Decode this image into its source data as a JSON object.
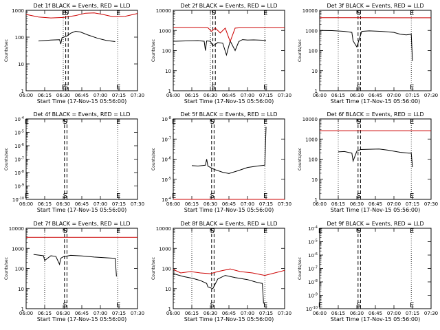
{
  "figure": {
    "line_colors": {
      "events": "#000000",
      "lld": "#cc0000"
    }
  },
  "chart_data": [
    {
      "type": "line",
      "panel": "1f",
      "title": "Det 1f BLACK = Events, RED = LLD",
      "xlabel": "Start Time (17-Nov-15 05:56:00)",
      "ylabel": "Counts/sec",
      "yscale": "log",
      "ylim": [
        1,
        1000
      ],
      "xlim": [
        "06:00",
        "07:30"
      ],
      "xticks": [
        "06:00",
        "06:15",
        "06:30",
        "06:45",
        "07:00",
        "07:15",
        "07:30"
      ],
      "yticks": [
        "1",
        "10",
        "100",
        "1000"
      ],
      "markers": [
        {
          "label": "E",
          "time": "06:30",
          "style": "dotted"
        },
        {
          "label": "S",
          "time": "06:32",
          "style": "dashed"
        },
        {
          "label": "",
          "time": "06:34",
          "style": "dashed"
        },
        {
          "label": "E",
          "time": "07:14",
          "style": "dotted"
        }
      ],
      "series": [
        {
          "key": "events",
          "x": [
            "06:10",
            "06:20",
            "06:27",
            "06:28",
            "06:29",
            "06:33",
            "06:36",
            "06:40",
            "06:44",
            "06:50",
            "06:58",
            "07:05",
            "07:12"
          ],
          "values": [
            72,
            78,
            80,
            55,
            95,
            110,
            140,
            165,
            155,
            120,
            90,
            75,
            68
          ]
        },
        {
          "key": "lld",
          "x": [
            "06:00",
            "06:10",
            "06:20",
            "06:30",
            "06:40",
            "06:48",
            "06:55",
            "07:02",
            "07:10",
            "07:20",
            "07:30"
          ],
          "values": [
            700,
            560,
            520,
            540,
            640,
            780,
            800,
            700,
            580,
            600,
            760
          ]
        }
      ]
    },
    {
      "type": "line",
      "panel": "2f",
      "title": "Det 2f BLACK = Events, RED = LLD",
      "xlabel": "Start Time (17-Nov-15 05:56:00)",
      "ylabel": "Counts/sec",
      "yscale": "log",
      "ylim": [
        1,
        10000
      ],
      "xlim": [
        "06:00",
        "07:30"
      ],
      "xticks": [
        "06:00",
        "06:15",
        "06:30",
        "06:45",
        "07:00",
        "07:15",
        "07:30"
      ],
      "yticks": [
        "1",
        "10",
        "100",
        "1000",
        "10000"
      ],
      "markers": [
        {
          "label": "",
          "time": "06:30",
          "style": "dotted"
        },
        {
          "label": "S",
          "time": "06:32",
          "style": "dashed"
        },
        {
          "label": "",
          "time": "06:34",
          "style": "dashed"
        },
        {
          "label": "E",
          "time": "07:14",
          "style": "dotted"
        }
      ],
      "series": [
        {
          "key": "events",
          "x": [
            "06:00",
            "06:10",
            "06:20",
            "06:25",
            "06:26",
            "06:27",
            "06:30",
            "06:32",
            "06:36",
            "06:40",
            "06:43",
            "06:46",
            "06:50",
            "06:53",
            "06:56",
            "07:00",
            "07:05",
            "07:15"
          ],
          "values": [
            290,
            300,
            310,
            290,
            100,
            300,
            290,
            170,
            250,
            230,
            60,
            300,
            100,
            280,
            350,
            330,
            340,
            320
          ]
        },
        {
          "key": "lld",
          "x": [
            "06:00",
            "06:20",
            "06:28",
            "06:31",
            "06:34",
            "06:38",
            "06:42",
            "06:46",
            "06:50",
            "06:54",
            "07:00",
            "07:30"
          ],
          "values": [
            1400,
            1400,
            1350,
            900,
            1300,
            750,
            1300,
            280,
            1300,
            1350,
            1350,
            1350
          ]
        }
      ]
    },
    {
      "type": "line",
      "panel": "3f",
      "title": "Det 3f BLACK = Events, RED = LLD",
      "xlabel": "Start Time (17-Nov-15 05:56:00)",
      "ylabel": "Counts/sec",
      "yscale": "log",
      "ylim": [
        1,
        10000
      ],
      "xlim": [
        "06:00",
        "07:30"
      ],
      "xticks": [
        "06:00",
        "06:15",
        "06:30",
        "06:45",
        "07:00",
        "07:15",
        "07:30"
      ],
      "yticks": [
        "1",
        "10",
        "100",
        "1000",
        "10000"
      ],
      "markers": [
        {
          "label": "",
          "time": "06:15",
          "style": "dotted"
        },
        {
          "label": "S",
          "time": "06:31",
          "style": "dashed"
        },
        {
          "label": "",
          "time": "06:33",
          "style": "dashed"
        },
        {
          "label": "E",
          "time": "07:14",
          "style": "dotted"
        }
      ],
      "series": [
        {
          "key": "events",
          "x": [
            "06:00",
            "06:10",
            "06:20",
            "06:26",
            "06:27",
            "06:30",
            "06:34",
            "06:40",
            "06:50",
            "07:00",
            "07:05",
            "07:10",
            "07:14",
            "07:15"
          ],
          "values": [
            1000,
            980,
            900,
            800,
            300,
            150,
            900,
            950,
            900,
            800,
            650,
            600,
            650,
            30
          ]
        },
        {
          "key": "lld",
          "x": [
            "06:00",
            "06:30",
            "07:00",
            "07:30"
          ],
          "values": [
            4300,
            4300,
            4250,
            4250
          ]
        }
      ]
    },
    {
      "type": "line",
      "panel": "4f",
      "title": "Det 4f BLACK = Events, RED = LLD",
      "xlabel": "Start Time (17-Nov-15 05:56:00)",
      "ylabel": "Counts/sec",
      "yscale": "log",
      "ylim": [
        1e-10,
        0.0001
      ],
      "xlim": [
        "06:00",
        "07:30"
      ],
      "xticks": [
        "06:00",
        "06:15",
        "06:30",
        "06:45",
        "07:00",
        "07:15",
        "07:30"
      ],
      "yticks": [
        "10^-10",
        "10^-9",
        "10^-8",
        "10^-7",
        "10^-6",
        "10^-5",
        "10^-4"
      ],
      "markers": [
        {
          "label": "E",
          "time": "06:00",
          "style": "dotted"
        },
        {
          "label": "S",
          "time": "06:31",
          "style": "dashed"
        },
        {
          "label": "",
          "time": "06:33",
          "style": "dashed"
        },
        {
          "label": "E",
          "time": "07:14",
          "style": "dotted"
        }
      ],
      "series": []
    },
    {
      "type": "line",
      "panel": "5f",
      "title": "Det 5f BLACK = Events, RED = LLD",
      "xlabel": "Start Time (17-Nov-15 05:56:00)",
      "ylabel": "Counts/sec",
      "yscale": "log",
      "ylim": [
        0.0001,
        1e-08
      ],
      "xlim": [
        "06:00",
        "07:30"
      ],
      "xticks": [
        "06:00",
        "06:15",
        "06:30",
        "06:45",
        "07:00",
        "07:15",
        "07:30"
      ],
      "yticks": [
        "10^-4",
        "10^-5",
        "10^-6",
        "10^-7",
        "10^-8"
      ],
      "markers": [
        {
          "label": "E",
          "time": "06:00",
          "style": "dotted"
        },
        {
          "label": "S",
          "time": "06:31",
          "style": "dashed"
        },
        {
          "label": "",
          "time": "06:33",
          "style": "dashed"
        },
        {
          "label": "E",
          "time": "07:14",
          "style": "dotted"
        }
      ],
      "series": [
        {
          "key": "events",
          "x": [
            "06:15",
            "06:20",
            "06:26",
            "06:27",
            "06:28",
            "06:30",
            "06:33",
            "06:40",
            "06:45",
            "06:52",
            "07:00",
            "07:08",
            "07:14",
            "07:15"
          ],
          "values": [
            2.1e-06,
            2.2e-06,
            2e-06,
            1e-06,
            2.2e-06,
            2.6e-06,
            3.2e-06,
            4.5e-06,
            5.2e-06,
            3.8e-06,
            2.6e-06,
            2.2e-06,
            2e-06,
            2.5e-08
          ]
        },
        {
          "key": "lld",
          "x": [
            "06:00",
            "07:30"
          ],
          "values": [
            0.0001,
            0.0001
          ]
        }
      ]
    },
    {
      "type": "line",
      "panel": "6f",
      "title": "Det 6f BLACK = Events, RED = LLD",
      "xlabel": "Start Time (17-Nov-15 05:56:00)",
      "ylabel": "Counts/sec",
      "yscale": "log",
      "ylim": [
        1,
        10000
      ],
      "xlim": [
        "06:00",
        "07:30"
      ],
      "xticks": [
        "06:00",
        "06:15",
        "06:30",
        "06:45",
        "07:00",
        "07:15",
        "07:30"
      ],
      "yticks": [
        "1",
        "10",
        "100",
        "1000",
        "10000"
      ],
      "markers": [
        {
          "label": "",
          "time": "06:15",
          "style": "dotted"
        },
        {
          "label": "S",
          "time": "06:31",
          "style": "dashed"
        },
        {
          "label": "",
          "time": "06:33",
          "style": "dashed"
        },
        {
          "label": "E",
          "time": "07:14",
          "style": "dotted"
        }
      ],
      "series": [
        {
          "key": "events",
          "x": [
            "06:15",
            "06:20",
            "06:26",
            "06:27",
            "06:30",
            "06:33",
            "06:40",
            "06:48",
            "06:55",
            "07:05",
            "07:12",
            "07:14",
            "07:15"
          ],
          "values": [
            230,
            240,
            200,
            80,
            250,
            300,
            310,
            320,
            280,
            220,
            200,
            200,
            40
          ]
        },
        {
          "key": "lld",
          "x": [
            "06:00",
            "07:30"
          ],
          "values": [
            2600,
            2600
          ]
        }
      ]
    },
    {
      "type": "line",
      "panel": "7f",
      "title": "Det 7f BLACK = Events, RED = LLD",
      "xlabel": "Start Time (17-Nov-15 05:56:00)",
      "ylabel": "Counts/sec",
      "yscale": "log",
      "ylim": [
        1,
        10000
      ],
      "xlim": [
        "06:00",
        "07:30"
      ],
      "xticks": [
        "06:00",
        "06:15",
        "06:30",
        "06:45",
        "07:00",
        "07:15",
        "07:30"
      ],
      "yticks": [
        "1",
        "10",
        "100",
        "1000",
        "10000"
      ],
      "markers": [
        {
          "label": "",
          "time": "06:15",
          "style": "dotted"
        },
        {
          "label": "S",
          "time": "06:31",
          "style": "dashed"
        },
        {
          "label": "",
          "time": "06:33",
          "style": "dashed"
        },
        {
          "label": "E",
          "time": "07:14",
          "style": "dotted"
        }
      ],
      "series": [
        {
          "key": "events",
          "x": [
            "06:06",
            "06:14",
            "06:15",
            "06:20",
            "06:24",
            "06:27",
            "06:28",
            "06:30",
            "06:36",
            "06:45",
            "06:55",
            "07:05",
            "07:12",
            "07:13"
          ],
          "values": [
            500,
            430,
            250,
            430,
            400,
            160,
            320,
            380,
            450,
            420,
            370,
            340,
            320,
            40
          ]
        },
        {
          "key": "lld",
          "x": [
            "06:00",
            "07:30"
          ],
          "values": [
            3500,
            3500
          ]
        }
      ]
    },
    {
      "type": "line",
      "panel": "8f",
      "title": "Det 8f BLACK = Events, RED = LLD",
      "xlabel": "Start Time (17-Nov-15 05:56:00)",
      "ylabel": "Counts/sec",
      "yscale": "log",
      "ylim": [
        1,
        10000
      ],
      "xlim": [
        "06:00",
        "07:30"
      ],
      "xticks": [
        "06:00",
        "06:15",
        "06:30",
        "06:45",
        "07:00",
        "07:15",
        "07:30"
      ],
      "yticks": [
        "1",
        "10",
        "100",
        "1000",
        "10000"
      ],
      "markers": [
        {
          "label": "",
          "time": "06:15",
          "style": "dotted"
        },
        {
          "label": "S",
          "time": "06:31",
          "style": "dashed"
        },
        {
          "label": "",
          "time": "06:33",
          "style": "dashed"
        },
        {
          "label": "E",
          "time": "07:14",
          "style": "dotted"
        }
      ],
      "series": [
        {
          "key": "events",
          "x": [
            "06:00",
            "06:08",
            "06:16",
            "06:22",
            "06:27",
            "06:28",
            "06:32",
            "06:36",
            "06:42",
            "06:50",
            "07:00",
            "07:08",
            "07:12",
            "07:13"
          ],
          "values": [
            55,
            40,
            32,
            25,
            18,
            12,
            10,
            30,
            45,
            35,
            28,
            20,
            18,
            1.8
          ]
        },
        {
          "key": "lld",
          "x": [
            "06:00",
            "06:06",
            "06:14",
            "06:22",
            "06:30",
            "06:36",
            "06:46",
            "06:54",
            "07:04",
            "07:14",
            "07:22",
            "07:30"
          ],
          "values": [
            90,
            60,
            70,
            60,
            55,
            70,
            95,
            70,
            60,
            45,
            60,
            80
          ]
        }
      ]
    },
    {
      "type": "line",
      "panel": "9f",
      "title": "Det 9f BLACK = Events, RED = LLD",
      "xlabel": "Start Time (17-Nov-15 05:56:00)",
      "ylabel": "Counts/sec",
      "yscale": "log",
      "ylim": [
        1e-10,
        0.0001
      ],
      "xlim": [
        "06:00",
        "07:30"
      ],
      "xticks": [
        "06:00",
        "06:15",
        "06:30",
        "06:45",
        "07:00",
        "07:15",
        "07:30"
      ],
      "yticks": [
        "10^-10",
        "10^-9",
        "10^-8",
        "10^-7",
        "10^-6",
        "10^-5",
        "10^-4"
      ],
      "markers": [
        {
          "label": "E",
          "time": "06:00",
          "style": "dotted"
        },
        {
          "label": "S",
          "time": "06:31",
          "style": "dashed"
        },
        {
          "label": "",
          "time": "06:33",
          "style": "dashed"
        },
        {
          "label": "E",
          "time": "07:14",
          "style": "dotted"
        }
      ],
      "series": []
    }
  ]
}
